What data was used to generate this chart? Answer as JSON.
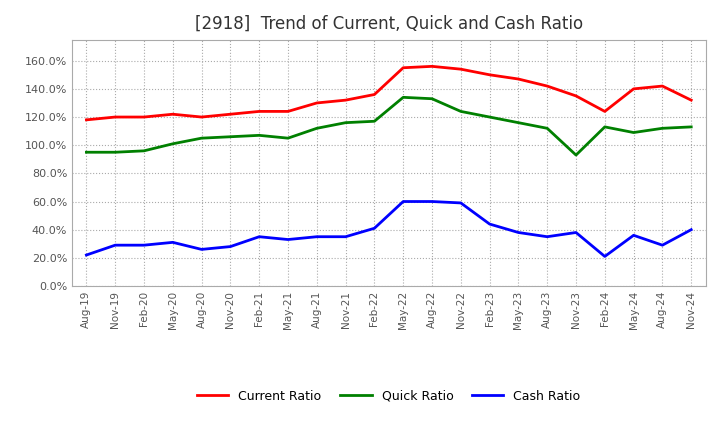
{
  "title": "[2918]  Trend of Current, Quick and Cash Ratio",
  "title_fontsize": 12,
  "title_color": "#333333",
  "background_color": "#ffffff",
  "plot_background_color": "#ffffff",
  "grid_color": "#aaaaaa",
  "x_labels": [
    "Aug-19",
    "Nov-19",
    "Feb-20",
    "May-20",
    "Aug-20",
    "Nov-20",
    "Feb-21",
    "May-21",
    "Aug-21",
    "Nov-21",
    "Feb-22",
    "May-22",
    "Aug-22",
    "Nov-22",
    "Feb-23",
    "May-23",
    "Aug-23",
    "Nov-23",
    "Feb-24",
    "May-24",
    "Aug-24",
    "Nov-24"
  ],
  "current_ratio": [
    1.18,
    1.2,
    1.2,
    1.22,
    1.2,
    1.22,
    1.24,
    1.24,
    1.3,
    1.32,
    1.36,
    1.55,
    1.56,
    1.54,
    1.5,
    1.47,
    1.42,
    1.35,
    1.24,
    1.4,
    1.42,
    1.32
  ],
  "quick_ratio": [
    0.95,
    0.95,
    0.96,
    1.01,
    1.05,
    1.06,
    1.07,
    1.05,
    1.12,
    1.16,
    1.17,
    1.34,
    1.33,
    1.24,
    1.2,
    1.16,
    1.12,
    0.93,
    1.13,
    1.09,
    1.12,
    1.13
  ],
  "cash_ratio": [
    0.22,
    0.29,
    0.29,
    0.31,
    0.26,
    0.28,
    0.35,
    0.33,
    0.35,
    0.35,
    0.41,
    0.6,
    0.6,
    0.59,
    0.44,
    0.38,
    0.35,
    0.38,
    0.21,
    0.36,
    0.29,
    0.4
  ],
  "current_color": "#ff0000",
  "quick_color": "#008000",
  "cash_color": "#0000ff",
  "line_width": 2.0,
  "legend_labels": [
    "Current Ratio",
    "Quick Ratio",
    "Cash Ratio"
  ]
}
